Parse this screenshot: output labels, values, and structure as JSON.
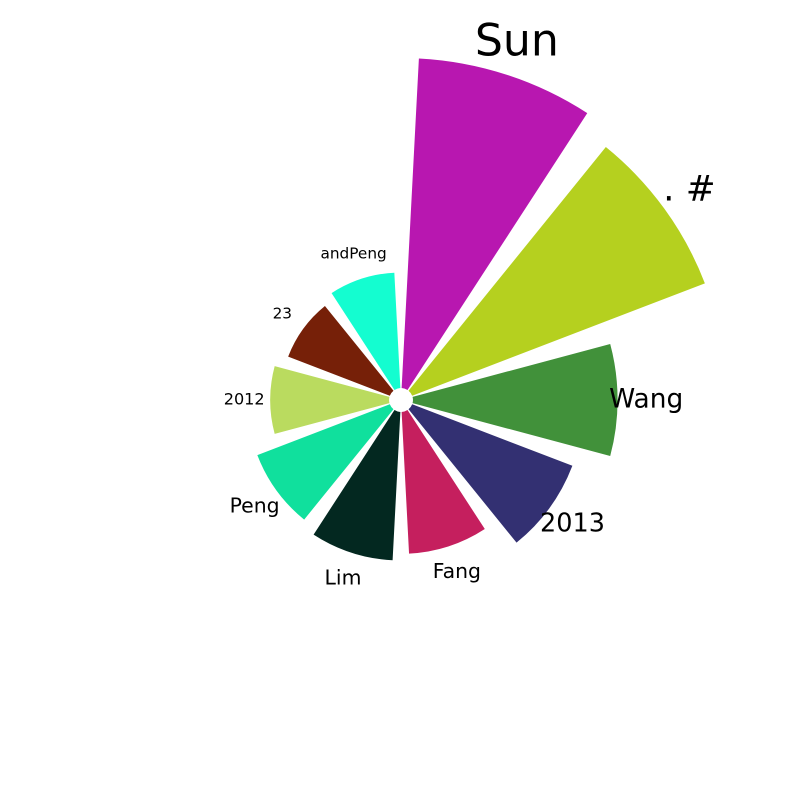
{
  "chart_data": {
    "type": "radial-bar",
    "categories": [
      "Sun",
      ". #",
      "Wang",
      "2013",
      "Fang",
      "Lim",
      "Peng",
      "2012",
      "23",
      "andPeng"
    ],
    "values": [
      100,
      95,
      62,
      52,
      43,
      45,
      43,
      36,
      33,
      35
    ],
    "colors": [
      "#B817B0",
      "#B5D01F",
      "#41913A",
      "#333072",
      "#C51F5E",
      "#032820",
      "#10E09D",
      "#BADB5F",
      "#762008",
      "#14FDD0"
    ],
    "start_angle_deg": 0,
    "direction": "clockwise",
    "inner_radius_fraction": 0.035,
    "label_emphasis": [
      2.6,
      2.1,
      1.55,
      1.5,
      1.2,
      1.2,
      1.2,
      0.95,
      0.9,
      0.9
    ]
  }
}
